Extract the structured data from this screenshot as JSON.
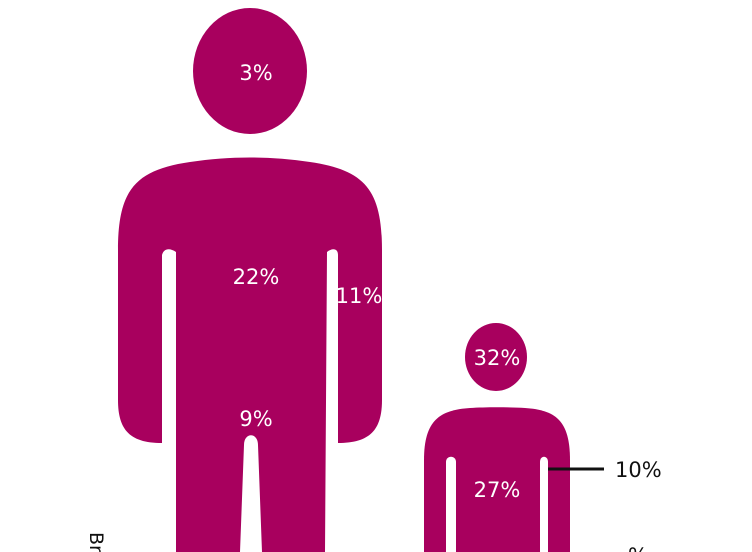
{
  "colors": {
    "figure": "#a8005e",
    "label": "#ffffff",
    "line": "#111111"
  },
  "adult": {
    "head": "3%",
    "torso": "22%",
    "arm": "11%",
    "legs": "9%"
  },
  "child": {
    "head": "32%",
    "torso": "27%",
    "arm": "10%",
    "partial_bottom": "%"
  },
  "side_label": "Br"
}
